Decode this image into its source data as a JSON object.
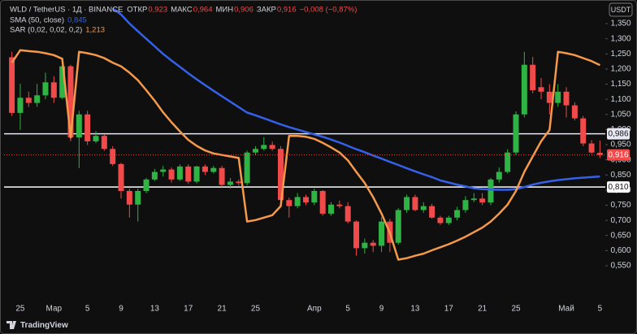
{
  "chart_data": {
    "type": "candlestick",
    "header": {
      "symbol": "WLD / TetherUS · 1Д · BINANCE",
      "ohlc": [
        {
          "label": "ОТКР",
          "value": "0,923"
        },
        {
          "label": "МАКС",
          "value": "0,964"
        },
        {
          "label": "МИН",
          "value": "0,906"
        },
        {
          "label": "ЗАКР",
          "value": "0,916"
        }
      ],
      "change": "−0,008 (−0,87%)"
    },
    "currency": "USDT",
    "brand": "TradingView",
    "categories": [
      null,
      "25",
      null,
      null,
      null,
      "Мар",
      null,
      null,
      null,
      "5",
      null,
      null,
      null,
      "9",
      null,
      null,
      null,
      "13",
      null,
      null,
      null,
      "17",
      null,
      null,
      null,
      "21",
      null,
      null,
      null,
      "25",
      null,
      null,
      null,
      null,
      null,
      null,
      "Апр",
      null,
      null,
      null,
      "5",
      null,
      null,
      null,
      "9",
      null,
      null,
      null,
      "13",
      null,
      null,
      null,
      "17",
      null,
      null,
      null,
      "21",
      null,
      null,
      null,
      "25",
      null,
      null,
      null,
      null,
      null,
      "Май",
      null,
      null,
      null,
      "5"
    ],
    "candles": {
      "open": [
        1.239,
        1.055,
        1.105,
        1.088,
        1.113,
        1.156,
        1.105,
        1.209,
        0.974,
        1.05,
        0.961,
        0.979,
        0.936,
        0.886,
        0.797,
        0.752,
        0.797,
        0.835,
        0.86,
        0.868,
        0.835,
        0.878,
        0.828,
        0.878,
        0.86,
        0.873,
        0.817,
        0.828,
        0.823,
        0.924,
        0.936,
        0.949,
        0.936,
        0.767,
        0.747,
        0.777,
        0.759,
        0.797,
        0.722,
        0.752,
        0.747,
        0.696,
        0.608,
        0.626,
        0.616,
        0.696,
        0.626,
        0.734,
        0.777,
        0.734,
        0.747,
        0.709,
        0.691,
        0.709,
        0.734,
        0.767,
        0.772,
        0.759,
        0.835,
        0.86,
        0.924,
        1.05,
        1.214,
        1.14,
        1.125,
        1.088,
        1.125,
        1.08,
        1.037,
        0.954,
        0.923
      ],
      "high": [
        1.257,
        1.151,
        1.125,
        1.151,
        1.188,
        1.176,
        1.214,
        1.214,
        1.062,
        1.062,
        0.995,
        0.985,
        0.945,
        0.89,
        0.805,
        0.805,
        0.84,
        0.87,
        0.88,
        0.875,
        0.885,
        0.885,
        0.88,
        0.885,
        0.88,
        0.88,
        0.84,
        0.835,
        0.93,
        0.945,
        0.975,
        0.96,
        0.945,
        0.775,
        0.79,
        0.785,
        0.805,
        0.8,
        0.76,
        0.765,
        0.76,
        0.7,
        0.64,
        0.635,
        0.71,
        0.705,
        0.74,
        0.785,
        0.785,
        0.76,
        0.755,
        0.715,
        0.715,
        0.745,
        0.78,
        0.79,
        0.79,
        0.84,
        0.875,
        0.935,
        1.06,
        1.257,
        1.24,
        1.17,
        1.15,
        1.15,
        1.14,
        1.09,
        1.045,
        0.965,
        0.964
      ],
      "low": [
        1.045,
        0.999,
        1.075,
        1.075,
        1.1,
        1.088,
        1.1,
        0.961,
        0.873,
        0.949,
        0.955,
        0.93,
        0.88,
        0.772,
        0.709,
        0.696,
        0.79,
        0.83,
        0.845,
        0.825,
        0.83,
        0.82,
        0.822,
        0.85,
        0.855,
        0.81,
        0.805,
        0.815,
        0.815,
        0.915,
        0.93,
        0.93,
        0.76,
        0.709,
        0.74,
        0.75,
        0.75,
        0.715,
        0.715,
        0.74,
        0.69,
        0.583,
        0.59,
        0.595,
        0.595,
        0.595,
        0.62,
        0.725,
        0.73,
        0.725,
        0.705,
        0.685,
        0.685,
        0.7,
        0.725,
        0.76,
        0.75,
        0.75,
        0.825,
        0.855,
        0.915,
        1.04,
        1.12,
        1.1,
        1.05,
        1.075,
        1.04,
        1.03,
        0.945,
        0.92,
        0.906
      ],
      "close": [
        1.055,
        1.105,
        1.088,
        1.113,
        1.156,
        1.105,
        1.209,
        0.974,
        1.05,
        0.961,
        0.979,
        0.936,
        0.886,
        0.797,
        0.752,
        0.797,
        0.835,
        0.86,
        0.868,
        0.835,
        0.878,
        0.828,
        0.878,
        0.86,
        0.873,
        0.817,
        0.828,
        0.823,
        0.924,
        0.936,
        0.949,
        0.936,
        0.767,
        0.747,
        0.777,
        0.759,
        0.797,
        0.722,
        0.752,
        0.747,
        0.696,
        0.608,
        0.626,
        0.616,
        0.696,
        0.626,
        0.734,
        0.777,
        0.734,
        0.747,
        0.709,
        0.691,
        0.709,
        0.734,
        0.767,
        0.772,
        0.759,
        0.835,
        0.86,
        0.924,
        1.05,
        1.214,
        1.13,
        1.125,
        1.088,
        1.125,
        1.08,
        1.037,
        0.954,
        0.924,
        0.916
      ]
    },
    "up_color": "#2fb344",
    "down_color": "#f04a4a",
    "series": [
      {
        "name": "SMA (50, close)",
        "legend_value": "0,845",
        "color": "#3461e8",
        "values": [
          null,
          null,
          null,
          null,
          null,
          null,
          null,
          null,
          null,
          null,
          null,
          null,
          1.4,
          1.38,
          1.35,
          1.325,
          1.3,
          1.275,
          1.25,
          1.228,
          1.207,
          1.186,
          1.166,
          1.147,
          1.128,
          1.11,
          1.092,
          1.074,
          1.056,
          1.047,
          1.037,
          1.027,
          1.017,
          1.008,
          1.0,
          0.992,
          0.984,
          0.976,
          0.967,
          0.957,
          0.946,
          0.935,
          0.925,
          0.914,
          0.904,
          0.893,
          0.883,
          0.872,
          0.862,
          0.852,
          0.843,
          0.832,
          0.825,
          0.818,
          0.812,
          0.806,
          0.803,
          0.802,
          0.801,
          0.801,
          0.803,
          0.81,
          0.818,
          0.824,
          0.829,
          0.833,
          0.836,
          0.839,
          0.841,
          0.843,
          0.845
        ]
      },
      {
        "name": "SAR (0,02, 0,02, 0,2)",
        "legend_value": "1,213",
        "color": "#f5994a",
        "values": [
          1.221,
          1.262,
          1.259,
          1.257,
          1.252,
          1.246,
          1.234,
          0.974,
          1.257,
          1.252,
          1.246,
          1.236,
          1.221,
          1.209,
          1.188,
          1.163,
          1.13,
          1.095,
          1.057,
          1.024,
          0.994,
          0.966,
          0.946,
          0.931,
          0.921,
          0.916,
          0.911,
          0.906,
          0.696,
          0.701,
          0.709,
          0.717,
          0.747,
          0.979,
          0.979,
          0.976,
          0.969,
          0.956,
          0.941,
          0.924,
          0.898,
          0.86,
          0.823,
          0.777,
          0.722,
          0.658,
          0.57,
          0.575,
          0.583,
          0.59,
          0.601,
          0.611,
          0.621,
          0.633,
          0.646,
          0.661,
          0.676,
          0.696,
          0.722,
          0.752,
          0.797,
          0.86,
          0.911,
          0.961,
          0.999,
          1.257,
          1.252,
          1.246,
          1.236,
          1.226,
          1.213
        ]
      }
    ],
    "hlines": [
      {
        "value": 0.986,
        "label": "0,986",
        "color": "#e8e8f4"
      },
      {
        "value": 0.81,
        "label": "0,810",
        "color": "#ffffff"
      }
    ],
    "last_price": {
      "value": 0.916,
      "label": "0,916",
      "color": "#f04a4a"
    },
    "ylim": [
      0.456,
      1.428
    ],
    "yticks": [
      {
        "value": 0.55,
        "label": "0,550"
      },
      {
        "value": 0.6,
        "label": "0,600"
      },
      {
        "value": 0.65,
        "label": "0,650"
      },
      {
        "value": 0.7,
        "label": "0,700"
      },
      {
        "value": 0.75,
        "label": "0,750"
      },
      {
        "value": 0.8,
        "label": "0,800"
      },
      {
        "value": 0.85,
        "label": "0,850"
      },
      {
        "value": 0.9,
        "label": "0,900"
      },
      {
        "value": 0.95,
        "label": "0,950"
      },
      {
        "value": 1.0,
        "label": "1,000"
      },
      {
        "value": 1.05,
        "label": "1,050"
      },
      {
        "value": 1.1,
        "label": "1,100"
      },
      {
        "value": 1.15,
        "label": "1,150"
      },
      {
        "value": 1.2,
        "label": "1,200"
      },
      {
        "value": 1.25,
        "label": "1,250"
      },
      {
        "value": 1.3,
        "label": "1,300"
      },
      {
        "value": 1.35,
        "label": "1,350"
      }
    ],
    "grid": false
  }
}
